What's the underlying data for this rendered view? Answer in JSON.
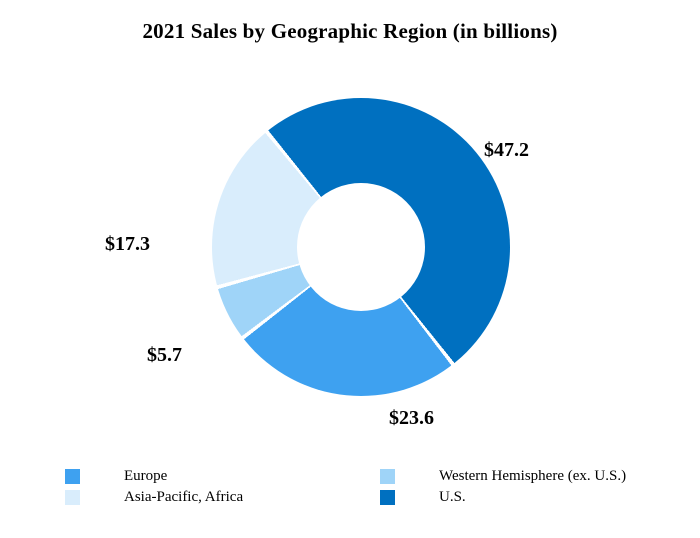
{
  "title": "2021 Sales by Geographic Region (in billions)",
  "chart_data": {
    "type": "pie",
    "donut": true,
    "title": "2021 Sales by Geographic Region (in billions)",
    "unit": "billions of dollars",
    "start_angle_deg": -40,
    "divider_deg": 1.5,
    "slices": [
      {
        "label": "U.S.",
        "value": 47.2,
        "display": "$47.2",
        "color": "#0070C0"
      },
      {
        "label": "Europe",
        "value": 23.6,
        "display": "$23.6",
        "color": "#3EA1F0"
      },
      {
        "label": "Western Hemisphere (ex. U.S.)",
        "value": 5.7,
        "display": "$5.7",
        "color": "#9FD4F8"
      },
      {
        "label": "Asia-Pacific, Africa",
        "value": 17.3,
        "display": "$17.3",
        "color": "#D9EDFC"
      }
    ],
    "legend_position": "bottom"
  },
  "legend": {
    "columns": [
      [
        {
          "label": "Europe",
          "color": "#3EA1F0"
        },
        {
          "label": "Asia-Pacific, Africa",
          "color": "#D9EDFC"
        }
      ],
      [
        {
          "label": "Western Hemisphere (ex. U.S.)",
          "color": "#9FD4F8"
        },
        {
          "label": "U.S.",
          "color": "#0070C0"
        }
      ]
    ]
  }
}
